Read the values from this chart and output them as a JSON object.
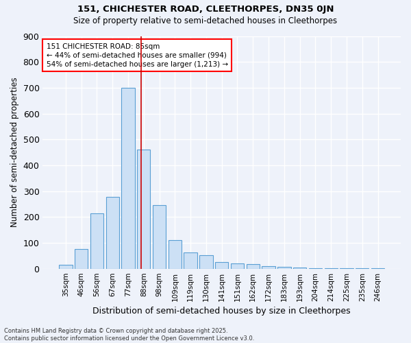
{
  "title1": "151, CHICHESTER ROAD, CLEETHORPES, DN35 0JN",
  "title2": "Size of property relative to semi-detached houses in Cleethorpes",
  "xlabel": "Distribution of semi-detached houses by size in Cleethorpes",
  "ylabel": "Number of semi-detached properties",
  "bar_labels": [
    "35sqm",
    "46sqm",
    "56sqm",
    "67sqm",
    "77sqm",
    "88sqm",
    "98sqm",
    "109sqm",
    "119sqm",
    "130sqm",
    "141sqm",
    "151sqm",
    "162sqm",
    "172sqm",
    "183sqm",
    "193sqm",
    "204sqm",
    "214sqm",
    "225sqm",
    "235sqm",
    "246sqm"
  ],
  "bar_values": [
    15,
    75,
    215,
    278,
    700,
    460,
    246,
    110,
    63,
    53,
    27,
    20,
    17,
    10,
    8,
    4,
    3,
    2,
    1,
    1,
    1
  ],
  "bar_color": "#cce0f5",
  "bar_edge_color": "#5a9fd4",
  "line_color": "#cc0000",
  "annotation_text": "151 CHICHESTER ROAD: 85sqm\n← 44% of semi-detached houses are smaller (994)\n54% of semi-detached houses are larger (1,213) →",
  "footer_line1": "Contains HM Land Registry data © Crown copyright and database right 2025.",
  "footer_line2": "Contains public sector information licensed under the Open Government Licence v3.0.",
  "ylim": [
    0,
    900
  ],
  "yticks": [
    0,
    100,
    200,
    300,
    400,
    500,
    600,
    700,
    800,
    900
  ],
  "bg_color": "#eef2fa",
  "grid_color": "#ffffff"
}
